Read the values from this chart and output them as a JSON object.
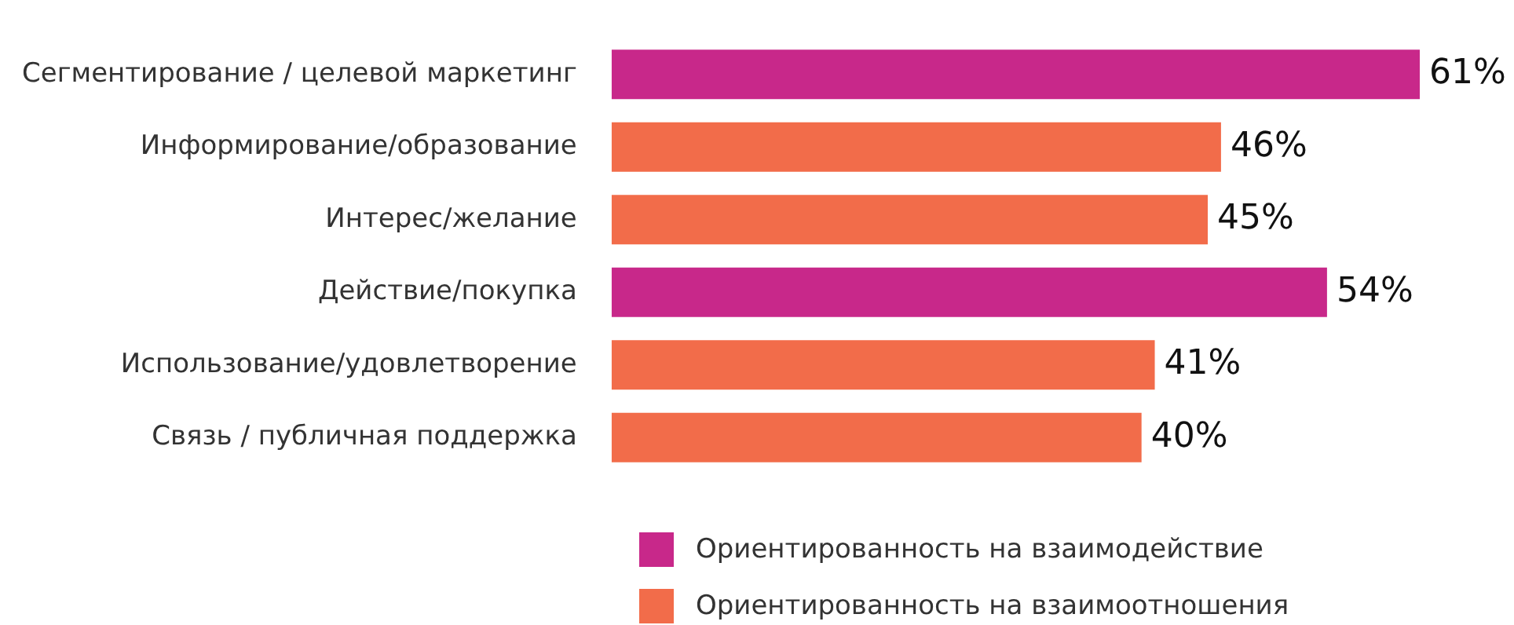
{
  "chart_data": {
    "type": "bar",
    "orientation": "horizontal",
    "categories": [
      "Сегментирование / целевой маркетинг",
      "Информирование/образование",
      "Интерес/желание",
      "Действие/покупка",
      "Использование/удовлетворение",
      "Связь / публичная поддержка"
    ],
    "series": [
      {
        "name": "Ориентированность на взаимодействие",
        "color": "#c8288a",
        "values": [
          61,
          null,
          null,
          54,
          null,
          null
        ],
        "value_labels": [
          "61%",
          null,
          null,
          "54%",
          null,
          null
        ]
      },
      {
        "name": "Ориентированность на взаимоотношения",
        "color": "#f26c4a",
        "values": [
          null,
          46,
          45,
          null,
          41,
          40
        ],
        "value_labels": [
          null,
          "46%",
          "45%",
          null,
          "41%",
          "40%"
        ]
      }
    ],
    "xlim": [
      0,
      61
    ],
    "tick_labels": "y",
    "grid": false,
    "legend": "bottom"
  }
}
